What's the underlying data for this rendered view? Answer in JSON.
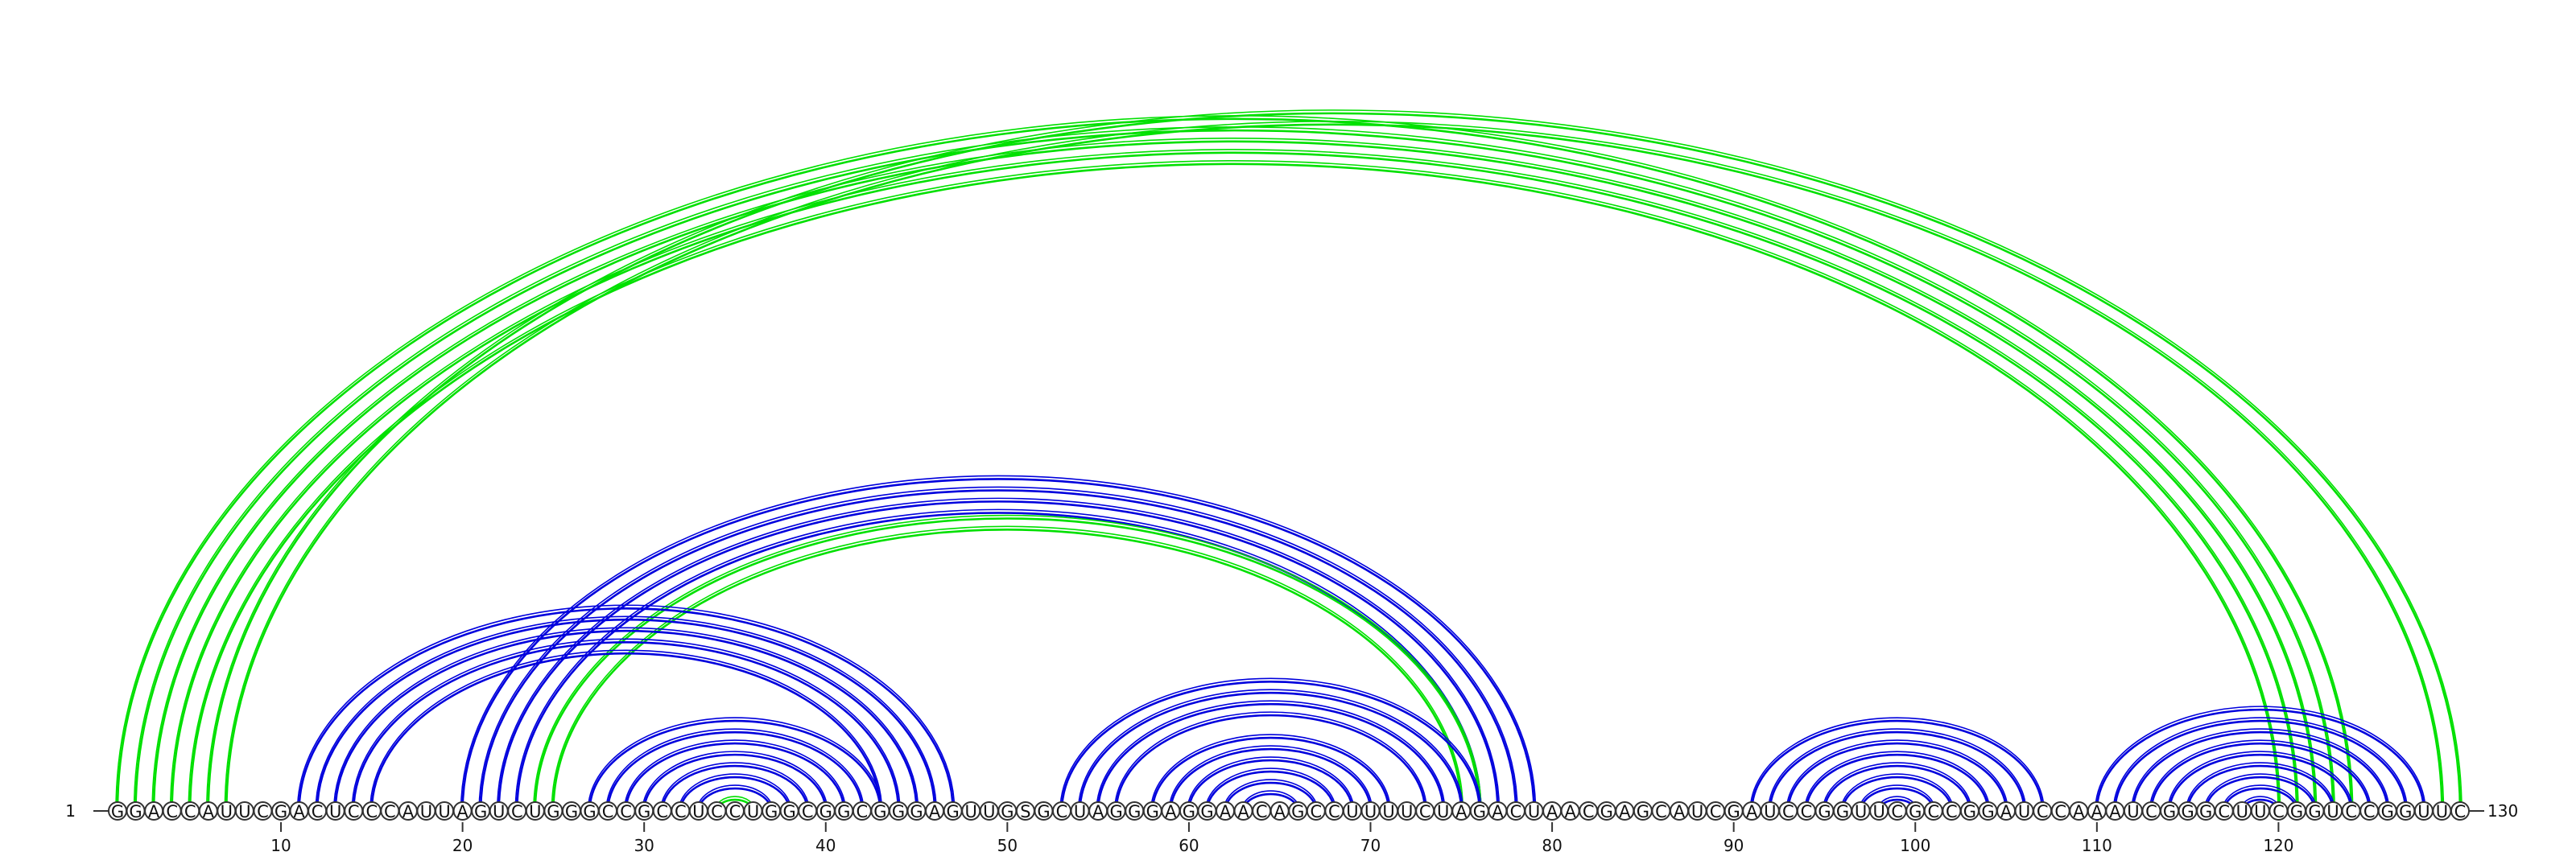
{
  "chart_data": {
    "type": "arc-diagram",
    "sequence": "GGACCAUUCGACUCCCAUUAGUCUGGGCCGCCUCCUGGCGGCGGGAGUUGSGCUAGGGAGGAACAGCCUUUUCUAGACUAACGAGCAUCGAUCCGGUUCGCCGGAUCCAAAUCGGGCUUCGGUCCGGUUC",
    "start_label": "1",
    "end_label": "130",
    "ticks": [
      10,
      20,
      30,
      40,
      50,
      60,
      70,
      80,
      90,
      100,
      110,
      120
    ],
    "colors": {
      "blue": "#0000dd",
      "green": "#00e000"
    },
    "pairs": [
      {
        "color": "blue",
        "i": 11,
        "j": 47
      },
      {
        "color": "blue",
        "i": 12,
        "j": 46
      },
      {
        "color": "blue",
        "i": 13,
        "j": 45
      },
      {
        "color": "blue",
        "i": 14,
        "j": 44
      },
      {
        "color": "blue",
        "i": 15,
        "j": 43
      },
      {
        "color": "blue",
        "i": 20,
        "j": 79
      },
      {
        "color": "blue",
        "i": 21,
        "j": 78
      },
      {
        "color": "blue",
        "i": 22,
        "j": 77
      },
      {
        "color": "blue",
        "i": 23,
        "j": 76
      },
      {
        "color": "blue",
        "i": 27,
        "j": 43
      },
      {
        "color": "blue",
        "i": 28,
        "j": 42
      },
      {
        "color": "blue",
        "i": 29,
        "j": 41
      },
      {
        "color": "blue",
        "i": 30,
        "j": 40
      },
      {
        "color": "blue",
        "i": 31,
        "j": 39
      },
      {
        "color": "blue",
        "i": 32,
        "j": 38
      },
      {
        "color": "blue",
        "i": 33,
        "j": 37
      },
      {
        "color": "blue",
        "i": 53,
        "j": 76
      },
      {
        "color": "blue",
        "i": 54,
        "j": 75
      },
      {
        "color": "blue",
        "i": 55,
        "j": 74
      },
      {
        "color": "blue",
        "i": 56,
        "j": 73
      },
      {
        "color": "blue",
        "i": 58,
        "j": 71
      },
      {
        "color": "blue",
        "i": 59,
        "j": 70
      },
      {
        "color": "blue",
        "i": 60,
        "j": 69
      },
      {
        "color": "blue",
        "i": 61,
        "j": 68
      },
      {
        "color": "blue",
        "i": 62,
        "j": 67
      },
      {
        "color": "blue",
        "i": 63,
        "j": 66
      },
      {
        "color": "blue",
        "i": 91,
        "j": 107
      },
      {
        "color": "blue",
        "i": 92,
        "j": 106
      },
      {
        "color": "blue",
        "i": 93,
        "j": 105
      },
      {
        "color": "blue",
        "i": 94,
        "j": 104
      },
      {
        "color": "blue",
        "i": 95,
        "j": 103
      },
      {
        "color": "blue",
        "i": 96,
        "j": 102
      },
      {
        "color": "blue",
        "i": 97,
        "j": 101
      },
      {
        "color": "blue",
        "i": 98,
        "j": 100
      },
      {
        "color": "blue",
        "i": 110,
        "j": 128
      },
      {
        "color": "blue",
        "i": 111,
        "j": 127
      },
      {
        "color": "blue",
        "i": 112,
        "j": 126
      },
      {
        "color": "blue",
        "i": 113,
        "j": 125
      },
      {
        "color": "blue",
        "i": 114,
        "j": 124
      },
      {
        "color": "blue",
        "i": 115,
        "j": 123
      },
      {
        "color": "blue",
        "i": 116,
        "j": 122
      },
      {
        "color": "blue",
        "i": 117,
        "j": 121
      },
      {
        "color": "blue",
        "i": 118,
        "j": 120
      },
      {
        "color": "green",
        "i": 1,
        "j": 124
      },
      {
        "color": "green",
        "i": 2,
        "j": 123
      },
      {
        "color": "green",
        "i": 3,
        "j": 122
      },
      {
        "color": "green",
        "i": 4,
        "j": 121
      },
      {
        "color": "green",
        "i": 5,
        "j": 120
      },
      {
        "color": "green",
        "i": 6,
        "j": 130
      },
      {
        "color": "green",
        "i": 7,
        "j": 129
      },
      {
        "color": "green",
        "i": 24,
        "j": 76
      },
      {
        "color": "green",
        "i": 25,
        "j": 75
      },
      {
        "color": "green",
        "i": 34,
        "j": 36
      }
    ]
  }
}
